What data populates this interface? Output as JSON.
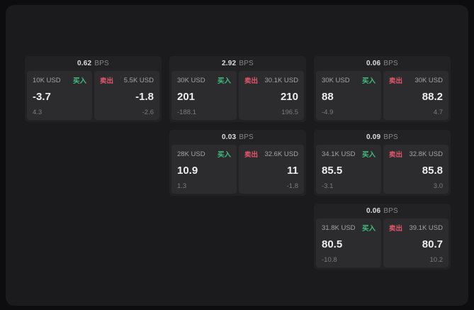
{
  "page": {
    "background": "#0d0d0f",
    "panel_background": "#1b1b1d"
  },
  "colors": {
    "buy": "#3fbf7f",
    "sell": "#e4566a"
  },
  "cards": [
    {
      "bps_value": "0.62",
      "bps_unit": "BPS",
      "buy": {
        "amount": "10K USD",
        "label": "买入",
        "price": "-3.7",
        "delta": "4.3"
      },
      "sell": {
        "label": "卖出",
        "amount": "5.5K USD",
        "price": "-1.8",
        "delta": "-2.6"
      }
    },
    {
      "bps_value": "2.92",
      "bps_unit": "BPS",
      "buy": {
        "amount": "30K USD",
        "label": "买入",
        "price": "201",
        "delta": "-188.1"
      },
      "sell": {
        "label": "卖出",
        "amount": "30.1K USD",
        "price": "210",
        "delta": "196.5"
      }
    },
    {
      "bps_value": "0.06",
      "bps_unit": "BPS",
      "buy": {
        "amount": "30K USD",
        "label": "买入",
        "price": "88",
        "delta": "-4.9"
      },
      "sell": {
        "label": "卖出",
        "amount": "30K USD",
        "price": "88.2",
        "delta": "4.7"
      }
    },
    {
      "bps_value": "0.03",
      "bps_unit": "BPS",
      "buy": {
        "amount": "28K USD",
        "label": "买入",
        "price": "10.9",
        "delta": "1.3"
      },
      "sell": {
        "label": "卖出",
        "amount": "32.6K USD",
        "price": "11",
        "delta": "-1.8"
      }
    },
    {
      "bps_value": "0.09",
      "bps_unit": "BPS",
      "buy": {
        "amount": "34.1K USD",
        "label": "买入",
        "price": "85.5",
        "delta": "-3.1"
      },
      "sell": {
        "label": "卖出",
        "amount": "32.8K USD",
        "price": "85.8",
        "delta": "3.0"
      }
    },
    {
      "bps_value": "0.06",
      "bps_unit": "BPS",
      "buy": {
        "amount": "31.8K USD",
        "label": "买入",
        "price": "80.5",
        "delta": "-10.8"
      },
      "sell": {
        "label": "卖出",
        "amount": "39.1K USD",
        "price": "80.7",
        "delta": "10.2"
      }
    }
  ]
}
